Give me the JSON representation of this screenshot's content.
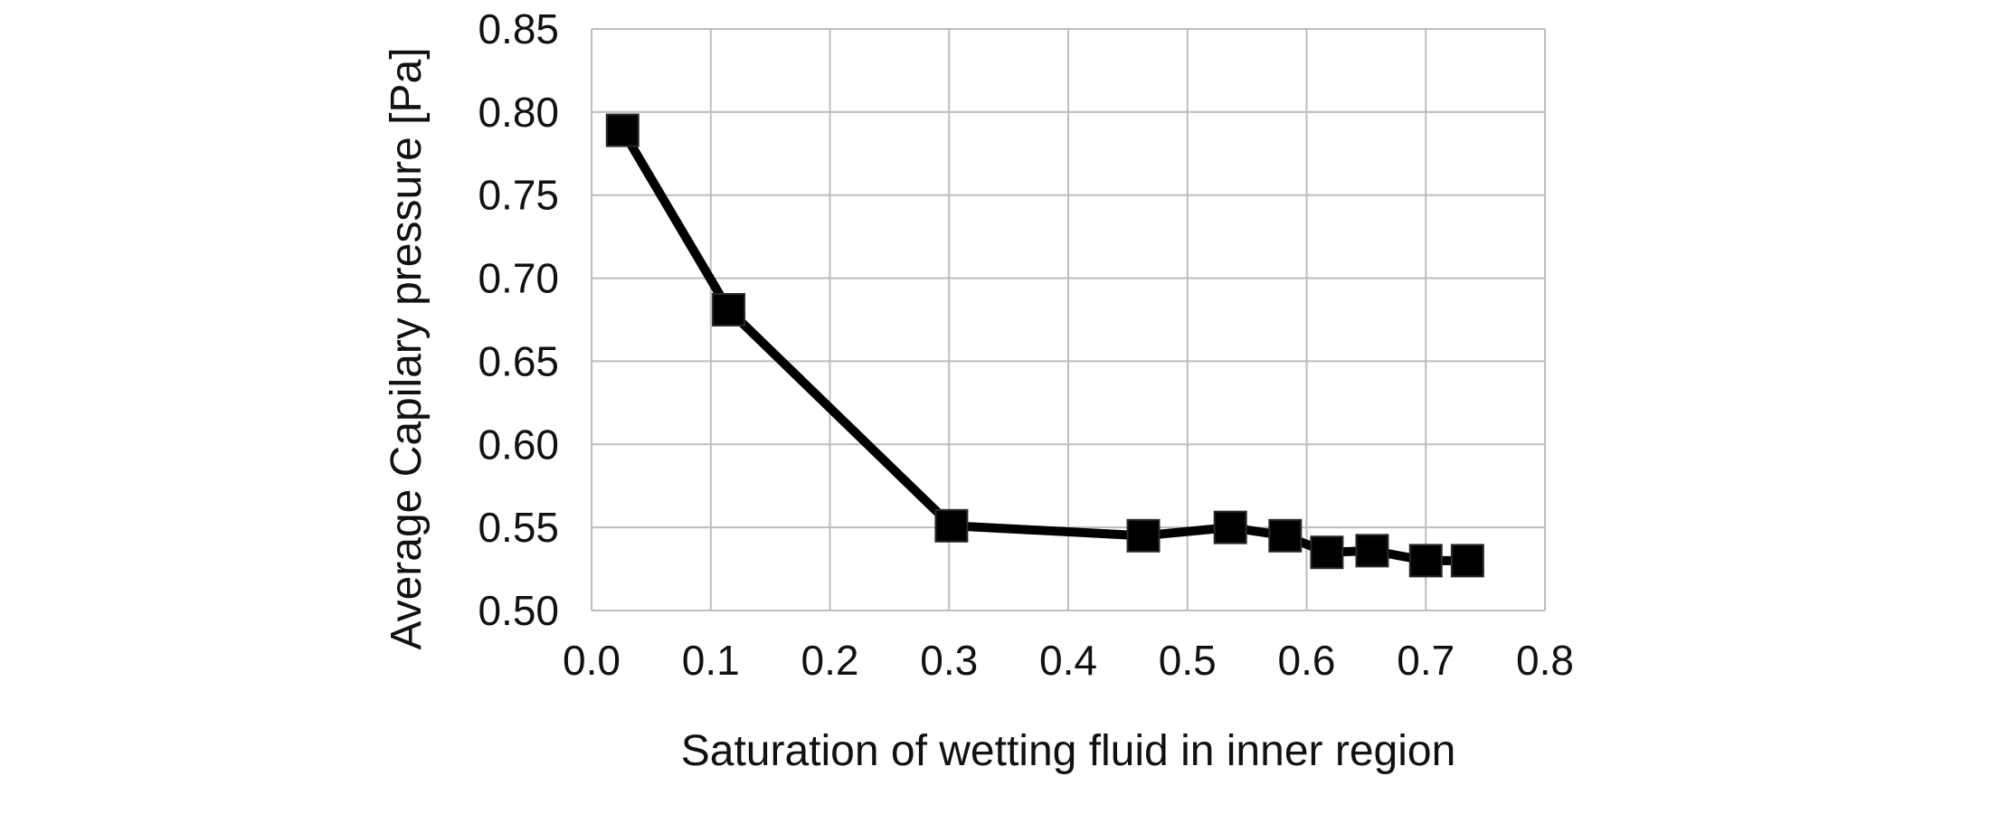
{
  "chart_data": {
    "type": "line",
    "title": "",
    "xlabel": "Saturation of wetting fluid in inner region",
    "ylabel": "Average Capilary pressure [Pa]",
    "xlim": [
      0.0,
      0.8
    ],
    "ylim": [
      0.5,
      0.85
    ],
    "x_ticks": [
      "0.0",
      "0.1",
      "0.2",
      "0.3",
      "0.4",
      "0.5",
      "0.6",
      "0.7",
      "0.8"
    ],
    "y_ticks": [
      "0.50",
      "0.55",
      "0.60",
      "0.65",
      "0.70",
      "0.75",
      "0.80",
      "0.85"
    ],
    "grid": true,
    "legend": "none",
    "series": [
      {
        "color": "#000000",
        "marker": "square",
        "x": [
          0.026,
          0.115,
          0.302,
          0.463,
          0.536,
          0.582,
          0.617,
          0.655,
          0.7,
          0.735
        ],
        "y": [
          0.789,
          0.681,
          0.551,
          0.545,
          0.55,
          0.545,
          0.535,
          0.536,
          0.53,
          0.53
        ]
      }
    ]
  }
}
